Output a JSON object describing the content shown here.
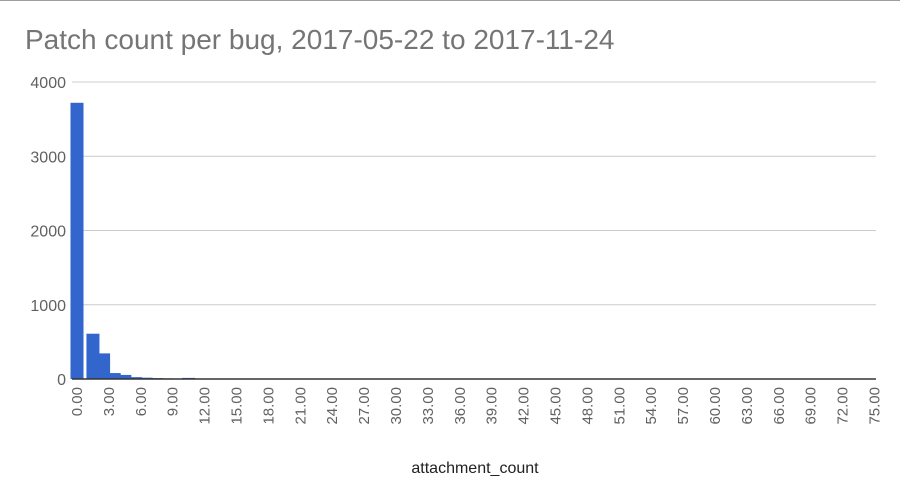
{
  "chart_data": {
    "type": "bar",
    "title": "Patch count per bug, 2017-05-22 to 2017-11-24",
    "xlabel": "attachment_count",
    "ylabel": "",
    "ylim": [
      0,
      4000
    ],
    "yticks": [
      "0",
      "1000",
      "2000",
      "3000",
      "4000"
    ],
    "xticks": [
      "0.00",
      "3.00",
      "6.00",
      "9.00",
      "12.00",
      "15.00",
      "18.00",
      "21.00",
      "24.00",
      "27.00",
      "30.00",
      "33.00",
      "36.00",
      "39.00",
      "42.00",
      "45.00",
      "48.00",
      "51.00",
      "54.00",
      "57.00",
      "60.00",
      "63.00",
      "66.00",
      "69.00",
      "72.00",
      "75.00"
    ],
    "x": [
      0,
      1.5,
      2.5,
      3.5,
      4.5,
      5.5,
      6.5,
      7.5,
      8.5,
      9.5,
      10.5,
      11.5,
      12.5,
      13.5
    ],
    "values": [
      3720,
      610,
      345,
      80,
      55,
      25,
      18,
      12,
      8,
      5,
      15,
      4,
      3,
      2
    ],
    "grid": true,
    "legend": "none",
    "bar_color": "#3366cc"
  }
}
